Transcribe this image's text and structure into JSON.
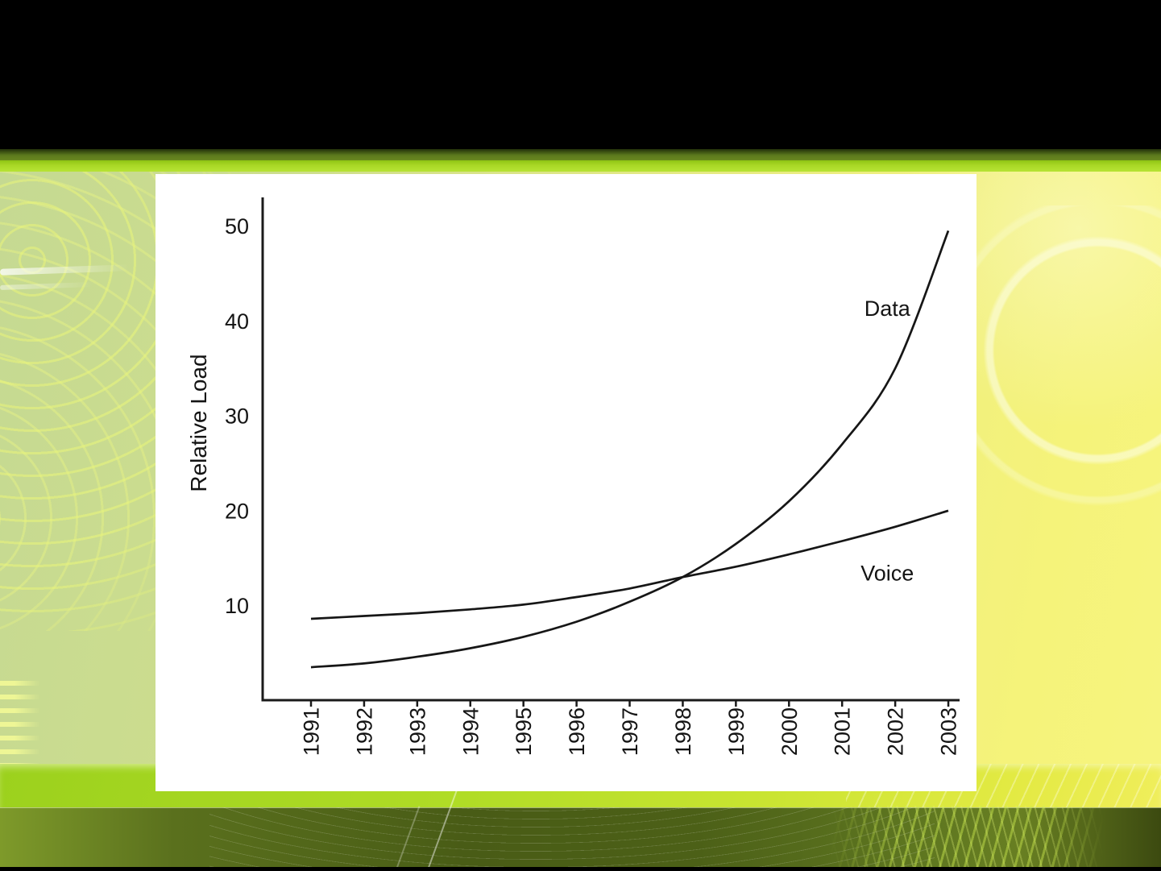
{
  "slide": {
    "background": {
      "top_bar_color": "#000000",
      "bottom_bar_color": "#000000",
      "accent_stripe_dark": "#5c791d",
      "accent_stripe_bright": "#a9d826",
      "body_gradient_left": "#c5d992",
      "body_gradient_right": "#f5f37a",
      "bottom_band_bright": "#b0dc26",
      "bottom_band_dark": "#4c6017"
    }
  },
  "chart_panel": {
    "background": "#ffffff"
  },
  "chart_data": {
    "type": "line",
    "title": "",
    "xlabel": "",
    "ylabel": "Relative Load",
    "x": [
      1991,
      1992,
      1993,
      1994,
      1995,
      1996,
      1997,
      1998,
      1999,
      2000,
      2001,
      2002,
      2003
    ],
    "categories": [
      "1991",
      "1992",
      "1993",
      "1994",
      "1995",
      "1996",
      "1997",
      "1998",
      "1999",
      "2000",
      "2001",
      "2002",
      "2003"
    ],
    "yticks": [
      10,
      20,
      30,
      40,
      50
    ],
    "ylim": [
      0,
      53
    ],
    "xlim": [
      1991,
      2003
    ],
    "grid": false,
    "legend_position": "inline-labels",
    "line_color": "#161616",
    "axis_color": "#1a1a1a",
    "series": [
      {
        "name": "Data",
        "values": [
          3.5,
          3.9,
          4.6,
          5.5,
          6.7,
          8.3,
          10.4,
          13.0,
          16.5,
          21.0,
          27.0,
          35.0,
          49.5
        ],
        "label_at": {
          "x": 2001.85,
          "y": 41.3
        }
      },
      {
        "name": "Voice",
        "values": [
          8.6,
          8.9,
          9.2,
          9.6,
          10.1,
          10.9,
          11.8,
          13.0,
          14.1,
          15.4,
          16.8,
          18.3,
          20.0
        ],
        "label_at": {
          "x": 2001.85,
          "y": 13.4
        }
      }
    ]
  }
}
